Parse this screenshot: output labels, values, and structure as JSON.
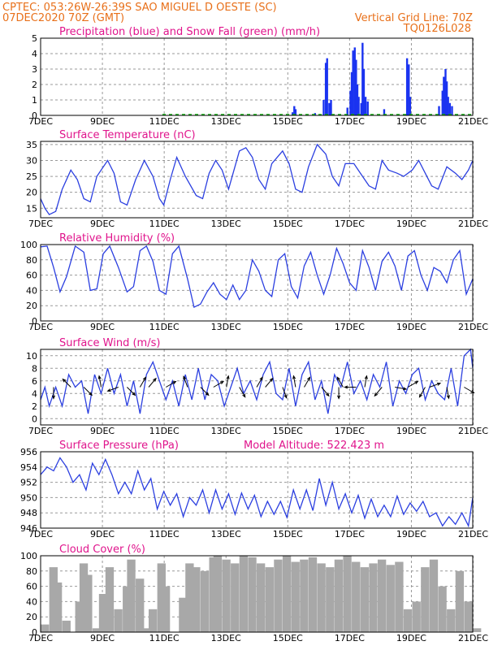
{
  "header": {
    "line1": "CPTEC:  053:26W-26:39S  SAO MIGUEL D OESTE (SC)",
    "line2": "07DEC2020 70Z (GMT)",
    "grid_note": "Vertical Grid Line: 70Z",
    "code": "TQ0126L028"
  },
  "colors": {
    "header": "#e8701a",
    "title": "#e0148c",
    "line": "#2b3fe0",
    "rain": "#1a33f0",
    "snow": "#10b010",
    "cloud": "#a8a8a8",
    "arrow": "#000000"
  },
  "x_ticks": [
    "7DEC",
    "9DEC",
    "11DEC",
    "13DEC",
    "15DEC",
    "17DEC",
    "19DEC",
    "21DEC"
  ],
  "chart_data": [
    {
      "type": "bar",
      "title": "Precipitation (blue) and Snow Fall (green) (mm/h)",
      "ylim": [
        0,
        5
      ],
      "yticks": [
        0,
        1,
        2,
        3,
        4,
        5
      ],
      "series": [
        {
          "name": "Precipitation",
          "points": [
            [
              5.83,
              0.2
            ],
            [
              5.87,
              0.6
            ],
            [
              5.9,
              0.4
            ],
            [
              6.35,
              0.15
            ],
            [
              6.55,
              1.0
            ],
            [
              6.6,
              3.4
            ],
            [
              6.63,
              3.7
            ],
            [
              6.68,
              0.8
            ],
            [
              6.72,
              1.0
            ],
            [
              7.1,
              0.5
            ],
            [
              7.17,
              1.6
            ],
            [
              7.2,
              2.8
            ],
            [
              7.23,
              4.2
            ],
            [
              7.27,
              4.4
            ],
            [
              7.3,
              3.6
            ],
            [
              7.33,
              2.0
            ],
            [
              7.36,
              1.2
            ],
            [
              7.42,
              0.8
            ],
            [
              7.45,
              4.7
            ],
            [
              7.48,
              3.0
            ],
            [
              7.52,
              1.2
            ],
            [
              7.57,
              0.9
            ],
            [
              7.95,
              0.4
            ],
            [
              8.48,
              3.7
            ],
            [
              8.52,
              3.3
            ],
            [
              8.55,
              1.2
            ],
            [
              9.22,
              0.6
            ],
            [
              9.3,
              1.6
            ],
            [
              9.33,
              2.5
            ],
            [
              9.37,
              3.0
            ],
            [
              9.4,
              2.2
            ],
            [
              9.43,
              1.2
            ],
            [
              9.47,
              0.8
            ],
            [
              9.52,
              0.6
            ]
          ]
        },
        {
          "name": "Snow Fall",
          "values": [
            0
          ]
        }
      ]
    },
    {
      "type": "line",
      "title": "Surface Temperature (nC)",
      "ylim": [
        12,
        36
      ],
      "yticks": [
        15,
        20,
        25,
        30,
        35
      ],
      "x": [
        0,
        0.1,
        0.2,
        0.35,
        0.5,
        0.7,
        0.85,
        1.0,
        1.15,
        1.3,
        1.55,
        1.7,
        1.85,
        2.0,
        2.2,
        2.4,
        2.6,
        2.75,
        2.85,
        3.0,
        3.15,
        3.35,
        3.6,
        3.75,
        3.9,
        4.05,
        4.2,
        4.35,
        4.6,
        4.75,
        4.9,
        5.05,
        5.2,
        5.35,
        5.6,
        5.75,
        5.9,
        6.05,
        6.2,
        6.4,
        6.6,
        6.75,
        6.9,
        7.05,
        7.25,
        7.4,
        7.6,
        7.75,
        7.9,
        8.05,
        8.25,
        8.4,
        8.6,
        8.75,
        8.9,
        9.05,
        9.2,
        9.4,
        9.6,
        9.75,
        9.9,
        10.0
      ],
      "y": [
        18,
        15,
        13,
        14,
        21,
        27,
        24,
        18,
        17,
        25,
        30,
        26,
        17,
        16,
        24,
        30,
        25,
        18,
        16,
        24,
        31,
        25,
        19,
        18,
        26,
        30,
        27,
        21,
        33,
        34,
        31,
        24,
        21,
        29,
        33,
        29,
        21,
        20,
        28,
        35,
        32,
        25,
        22,
        29,
        29,
        26,
        22,
        21,
        30,
        27,
        26,
        25,
        27,
        30,
        26,
        22,
        21,
        28,
        26,
        24,
        27,
        30
      ]
    },
    {
      "type": "line",
      "title": "Relative Humidity (%)",
      "ylim": [
        0,
        100
      ],
      "yticks": [
        0,
        20,
        40,
        60,
        80,
        100
      ],
      "x": [
        0,
        0.15,
        0.3,
        0.45,
        0.6,
        0.8,
        1.0,
        1.15,
        1.3,
        1.45,
        1.6,
        1.8,
        2.0,
        2.15,
        2.3,
        2.45,
        2.6,
        2.75,
        2.9,
        3.05,
        3.2,
        3.4,
        3.55,
        3.7,
        3.85,
        4.0,
        4.15,
        4.3,
        4.45,
        4.6,
        4.75,
        4.9,
        5.05,
        5.2,
        5.35,
        5.5,
        5.65,
        5.8,
        5.95,
        6.1,
        6.25,
        6.4,
        6.55,
        6.7,
        6.85,
        7.0,
        7.15,
        7.3,
        7.45,
        7.6,
        7.75,
        7.9,
        8.05,
        8.2,
        8.35,
        8.5,
        8.65,
        8.8,
        8.95,
        9.1,
        9.25,
        9.4,
        9.55,
        9.7,
        9.85,
        10.0
      ],
      "y": [
        97,
        98,
        70,
        38,
        58,
        98,
        90,
        40,
        42,
        88,
        98,
        70,
        38,
        45,
        92,
        98,
        78,
        40,
        35,
        88,
        98,
        55,
        18,
        22,
        38,
        50,
        35,
        28,
        47,
        28,
        40,
        80,
        65,
        40,
        32,
        80,
        88,
        45,
        30,
        72,
        90,
        60,
        35,
        60,
        95,
        75,
        50,
        40,
        92,
        70,
        40,
        78,
        90,
        72,
        40,
        85,
        92,
        60,
        40,
        70,
        65,
        50,
        80,
        92,
        35,
        55
      ]
    },
    {
      "type": "line",
      "title": "Surface Wind (m/s)",
      "ylim": [
        -1,
        11
      ],
      "yticks": [
        0,
        2,
        4,
        6,
        8,
        10
      ],
      "x": [
        0,
        0.1,
        0.2,
        0.35,
        0.5,
        0.65,
        0.8,
        0.95,
        1.1,
        1.25,
        1.4,
        1.55,
        1.7,
        1.85,
        2.0,
        2.15,
        2.3,
        2.45,
        2.6,
        2.75,
        2.9,
        3.05,
        3.2,
        3.35,
        3.5,
        3.65,
        3.8,
        3.95,
        4.1,
        4.25,
        4.4,
        4.55,
        4.7,
        4.85,
        5.0,
        5.15,
        5.3,
        5.45,
        5.6,
        5.75,
        5.9,
        6.05,
        6.2,
        6.35,
        6.5,
        6.65,
        6.8,
        6.95,
        7.1,
        7.25,
        7.4,
        7.55,
        7.7,
        7.85,
        8.0,
        8.15,
        8.3,
        8.45,
        8.6,
        8.75,
        8.9,
        9.05,
        9.2,
        9.35,
        9.5,
        9.65,
        9.8,
        9.95,
        10.0
      ],
      "y": [
        3,
        5,
        2,
        5,
        2,
        7,
        5,
        6,
        0.8,
        7,
        4,
        8,
        4,
        7,
        2,
        6,
        0.8,
        7,
        9,
        6,
        3,
        6,
        2,
        7,
        3,
        8,
        3,
        7,
        6,
        2,
        5,
        8,
        4,
        6,
        3,
        7,
        9,
        4,
        3,
        8,
        2,
        7,
        9,
        3,
        6,
        0.8,
        7,
        5,
        9,
        4,
        6,
        3,
        7,
        5,
        9,
        2,
        6,
        4,
        7,
        8,
        3,
        6,
        4,
        3,
        8,
        2,
        10,
        11,
        8
      ],
      "arrows": [
        [
          0.3,
          270
        ],
        [
          0.7,
          135
        ],
        [
          1.0,
          315
        ],
        [
          1.4,
          100
        ],
        [
          1.8,
          200
        ],
        [
          2.0,
          315
        ],
        [
          2.3,
          60
        ],
        [
          2.5,
          50
        ],
        [
          2.9,
          30
        ],
        [
          3.4,
          110
        ],
        [
          3.7,
          315
        ],
        [
          4.0,
          30
        ],
        [
          4.3,
          80
        ],
        [
          4.6,
          300
        ],
        [
          5.0,
          60
        ],
        [
          5.2,
          50
        ],
        [
          5.6,
          290
        ],
        [
          5.9,
          100
        ],
        [
          6.1,
          60
        ],
        [
          6.5,
          310
        ],
        [
          6.9,
          270
        ],
        [
          7.0,
          120
        ],
        [
          7.3,
          180
        ],
        [
          7.5,
          80
        ],
        [
          7.9,
          230
        ],
        [
          8.2,
          350
        ],
        [
          8.5,
          30
        ],
        [
          8.9,
          240
        ],
        [
          9.0,
          20
        ],
        [
          9.4,
          280
        ],
        [
          9.8,
          330
        ]
      ]
    },
    {
      "type": "line",
      "title": "Surface Pressure (hPa)",
      "annotation": "Model Altitude: 522.423 m",
      "ylim": [
        946,
        956
      ],
      "yticks": [
        946,
        948,
        950,
        952,
        954,
        956
      ],
      "x": [
        0,
        0.15,
        0.3,
        0.45,
        0.6,
        0.75,
        0.9,
        1.05,
        1.2,
        1.35,
        1.5,
        1.65,
        1.8,
        1.95,
        2.1,
        2.25,
        2.4,
        2.55,
        2.7,
        2.85,
        3.0,
        3.15,
        3.3,
        3.45,
        3.6,
        3.75,
        3.9,
        4.05,
        4.2,
        4.35,
        4.5,
        4.65,
        4.8,
        4.95,
        5.1,
        5.25,
        5.4,
        5.55,
        5.7,
        5.85,
        6.0,
        6.15,
        6.3,
        6.45,
        6.6,
        6.75,
        6.9,
        7.05,
        7.2,
        7.35,
        7.5,
        7.65,
        7.8,
        7.95,
        8.1,
        8.25,
        8.4,
        8.55,
        8.7,
        8.85,
        9.0,
        9.15,
        9.3,
        9.45,
        9.6,
        9.75,
        9.9,
        10.0
      ],
      "y": [
        953,
        954,
        953.5,
        955.2,
        954,
        952,
        953,
        951,
        954.5,
        953,
        955,
        953,
        950.5,
        952,
        950.5,
        953.5,
        951,
        952.5,
        948.5,
        950.8,
        949,
        950.5,
        947.5,
        950,
        949,
        951,
        948,
        951,
        948.5,
        950.5,
        947.8,
        950.6,
        948.5,
        950.3,
        947.5,
        949.5,
        947.8,
        949.5,
        947.4,
        951,
        948.5,
        951,
        948.3,
        952.5,
        949,
        952,
        948.5,
        950.5,
        948,
        950.3,
        947.3,
        949.8,
        947.5,
        949,
        947.5,
        950.2,
        947.8,
        949.3,
        948.2,
        949.5,
        947.5,
        948,
        946.3,
        947.5,
        946.5,
        948,
        946.3,
        950
      ]
    },
    {
      "type": "bar",
      "title": "Cloud Cover (%)",
      "ylim": [
        0,
        100
      ],
      "yticks": [
        0,
        20,
        40,
        60,
        80,
        100
      ],
      "x": [
        0,
        0.2,
        0.3,
        0.5,
        0.7,
        0.8,
        0.9,
        1.0,
        1.2,
        1.35,
        1.5,
        1.7,
        1.8,
        1.9,
        2.0,
        2.2,
        2.35,
        2.5,
        2.7,
        2.8,
        3.0,
        3.2,
        3.35,
        3.5,
        3.7,
        3.9,
        4.0,
        4.2,
        4.4,
        4.6,
        4.8,
        5.0,
        5.2,
        5.4,
        5.6,
        5.8,
        6.0,
        6.2,
        6.4,
        6.6,
        6.8,
        7.0,
        7.2,
        7.4,
        7.6,
        7.8,
        8.0,
        8.2,
        8.4,
        8.6,
        8.8,
        9.0,
        9.2,
        9.4,
        9.6,
        9.8,
        10.0
      ],
      "values": [
        10,
        85,
        65,
        15,
        0,
        40,
        90,
        75,
        5,
        50,
        85,
        30,
        0,
        60,
        95,
        70,
        5,
        30,
        90,
        60,
        0,
        45,
        90,
        85,
        80,
        98,
        100,
        95,
        90,
        100,
        98,
        90,
        85,
        95,
        100,
        92,
        95,
        98,
        90,
        85,
        95,
        100,
        92,
        85,
        90,
        95,
        88,
        92,
        30,
        40,
        85,
        95,
        60,
        30,
        80,
        40,
        5
      ]
    }
  ]
}
